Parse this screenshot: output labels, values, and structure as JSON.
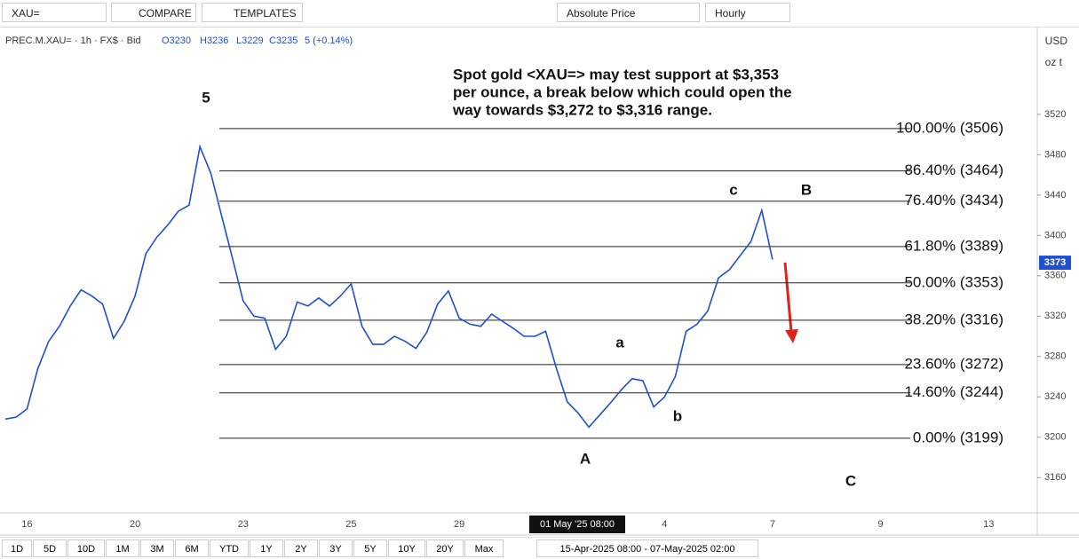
{
  "toolbar": {
    "symbol": "XAU=",
    "compare": "COMPARE",
    "templates": "TEMPLATES",
    "price_mode": "Absolute Price",
    "interval": "Hourly"
  },
  "axis_units": {
    "currency": "USD",
    "unit": "oz t"
  },
  "legend": {
    "instrument": "PREC.M.XAU= · 1h · FX$ · Bid",
    "open": "O3230",
    "high": "H3236",
    "low": "L3229",
    "close": "C3235",
    "change": "5 (+0.14%)"
  },
  "footer": {
    "ranges": [
      "1D",
      "5D",
      "10D",
      "1M",
      "3M",
      "6M",
      "YTD",
      "1Y",
      "2Y",
      "3Y",
      "5Y",
      "10Y",
      "20Y",
      "Max"
    ],
    "date_range": "15-Apr-2025 08:00 - 07-May-2025 02:00"
  },
  "chart_data": {
    "type": "line",
    "annotation": [
      "Spot gold <XAU=> may test support at $3,353",
      "per ounce, a break below which could open the",
      "way towards $3,272 to $3,316 range."
    ],
    "wave_labels": [
      "5",
      "c",
      "B",
      "a",
      "b",
      "A",
      "C"
    ],
    "crosshair_label": "01 May '25  08:00",
    "categories": [
      null,
      null,
      "16",
      null,
      null,
      null,
      null,
      null,
      null,
      null,
      null,
      null,
      "20",
      null,
      null,
      null,
      null,
      null,
      null,
      null,
      null,
      null,
      "23",
      null,
      null,
      null,
      null,
      null,
      null,
      null,
      null,
      null,
      "25",
      null,
      null,
      null,
      null,
      null,
      null,
      null,
      null,
      null,
      "29",
      null,
      null,
      null,
      null,
      null,
      null,
      null,
      null,
      null,
      null,
      null,
      null,
      null,
      null,
      null,
      null,
      null,
      null,
      "4",
      null,
      null,
      null,
      null,
      null,
      null,
      null,
      null,
      null,
      "7",
      null,
      null,
      null,
      null,
      null,
      null,
      null,
      null,
      null,
      "9",
      null,
      null,
      null,
      null,
      null,
      null,
      null,
      null,
      null,
      "13",
      null,
      null,
      null,
      null
    ],
    "series": [
      {
        "name": "PREC.M.XAU=",
        "color": "#1f4fd1",
        "values": [
          3218,
          3220,
          3228,
          3268,
          3295,
          3310,
          3330,
          3346,
          3340,
          3332,
          3298,
          3315,
          3340,
          3382,
          3398,
          3410,
          3424,
          3430,
          3488,
          3462,
          3420,
          3378,
          3335,
          3320,
          3318,
          3287,
          3300,
          3334,
          3330,
          3338,
          3330,
          3340,
          3352,
          3310,
          3292,
          3292,
          3300,
          3295,
          3288,
          3304,
          3332,
          3345,
          3318,
          3312,
          3310,
          3322,
          3315,
          3308,
          3300,
          3300,
          3305,
          3268,
          3235,
          3224,
          3210,
          3222,
          3234,
          3247,
          3258,
          3256,
          3230,
          3240,
          3260,
          3305,
          3312,
          3325,
          3358,
          3366,
          3380,
          3394,
          3425,
          3376,
          null,
          null,
          null,
          null,
          null,
          null,
          null,
          null,
          null,
          null,
          null,
          null,
          null,
          null,
          null,
          null,
          null,
          null,
          null,
          null,
          null,
          null,
          null,
          null
        ]
      }
    ],
    "fib_levels": [
      {
        "value": 3506,
        "label": "100.00% (3506)"
      },
      {
        "value": 3464,
        "label": "86.40% (3464)"
      },
      {
        "value": 3434,
        "label": "76.40% (3434)"
      },
      {
        "value": 3389,
        "label": "61.80% (3389)"
      },
      {
        "value": 3353,
        "label": "50.00% (3353)"
      },
      {
        "value": 3316,
        "label": "38.20% (3316)"
      },
      {
        "value": 3272,
        "label": "23.60% (3272)"
      },
      {
        "value": 3244,
        "label": "14.60% (3244)"
      },
      {
        "value": 3199,
        "label": "0.00% (3199)"
      }
    ],
    "last_price": 3373,
    "ylim": [
      3125,
      3607
    ],
    "yticks": [
      3520,
      3480,
      3440,
      3400,
      3360,
      3320,
      3280,
      3240,
      3200,
      3160
    ],
    "grid": false
  }
}
